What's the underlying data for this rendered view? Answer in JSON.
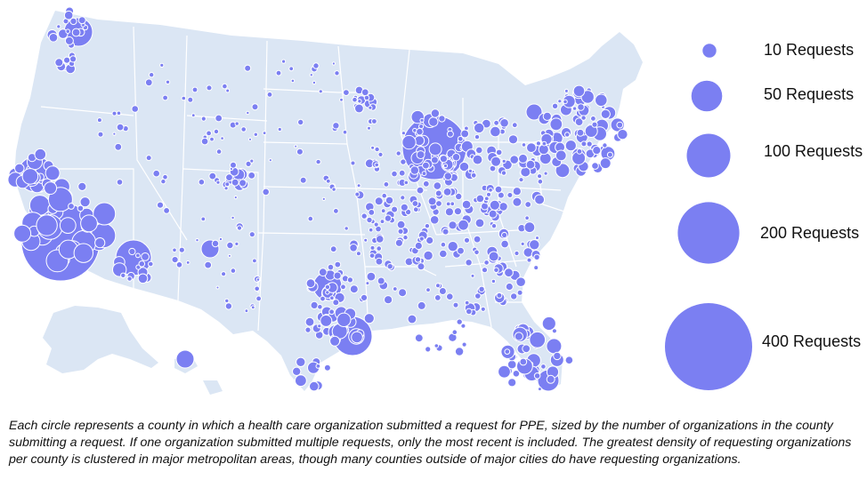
{
  "map": {
    "region": "United States",
    "land_color": "#dbe6f4",
    "border_color": "#ffffff",
    "circle_fill": "#7b7ff2",
    "circle_stroke": "#ffffff"
  },
  "legend": {
    "items": [
      {
        "requests": 10,
        "label": "10 Requests"
      },
      {
        "requests": 50,
        "label": "50 Requests"
      },
      {
        "requests": 100,
        "label": "100 Requests"
      },
      {
        "requests": 200,
        "label": "200 Requests"
      },
      {
        "requests": 400,
        "label": "400 Requests"
      }
    ]
  },
  "caption": "Each circle represents a county in which a health care organization submitted a request for PPE, sized by the number of organizations in the county submitting a request. If one organization submitted multiple requests, only the most recent is included. The greatest density of requesting organizations per county is clustered in major metropolitan areas, though many counties outside of major cities do have requesting organizations."
}
